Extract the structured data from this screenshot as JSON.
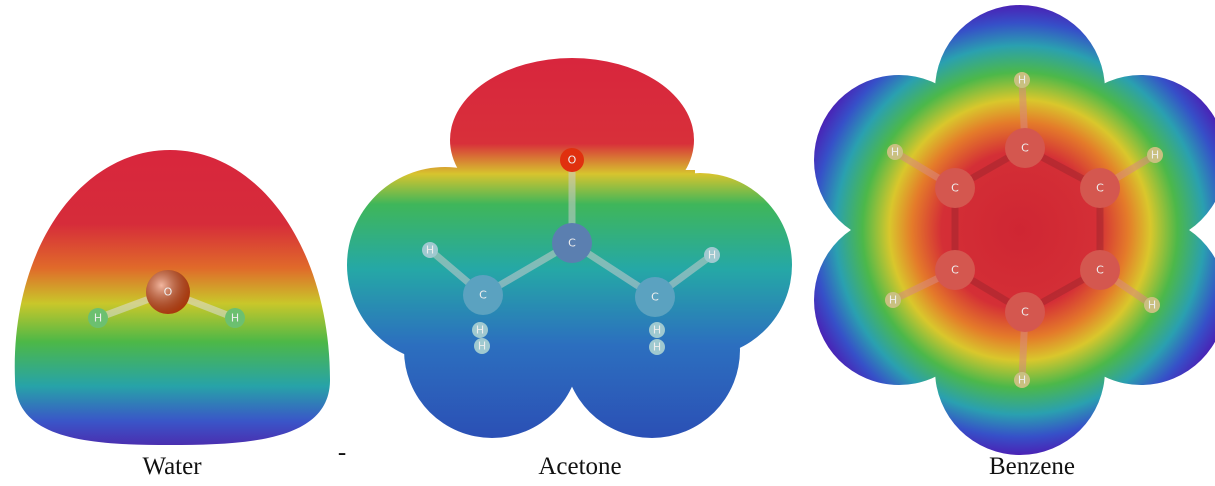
{
  "molecules": [
    {
      "name": "Water",
      "atoms": [
        "O",
        "H",
        "H"
      ]
    },
    {
      "name": "Acetone",
      "atoms": [
        "O",
        "C",
        "C",
        "C",
        "H",
        "H",
        "H",
        "H",
        "H",
        "H"
      ]
    },
    {
      "name": "Benzene",
      "atoms": [
        "C",
        "C",
        "C",
        "C",
        "C",
        "C",
        "H",
        "H",
        "H",
        "H",
        "H",
        "H"
      ]
    }
  ],
  "mark": "-"
}
